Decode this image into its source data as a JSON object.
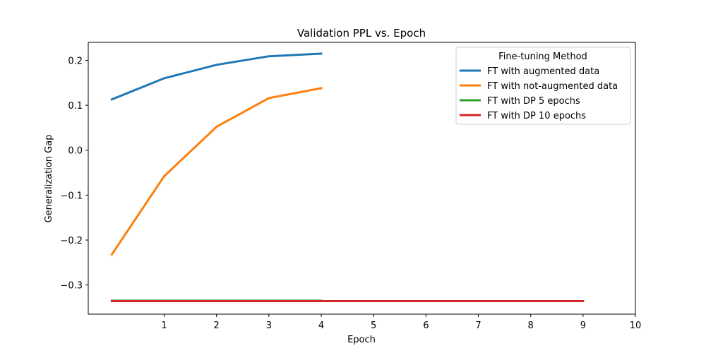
{
  "chart_data": {
    "type": "line",
    "title": "Validation PPL  vs. Epoch",
    "xlabel": "Epoch",
    "ylabel": "Generalization Gap",
    "xlim": [
      -0.45,
      10
    ],
    "ylim": [
      -0.365,
      0.24
    ],
    "xticks": [
      1,
      2,
      3,
      4,
      5,
      6,
      7,
      8,
      9,
      10
    ],
    "yticks": [
      0.2,
      0.1,
      0.0,
      -0.1,
      -0.2,
      -0.3
    ],
    "ytick_labels": [
      "0.2",
      "0.1",
      "0.0",
      "−0.1",
      "−0.2",
      "−0.3"
    ],
    "grid": false,
    "legend": {
      "title": "Fine-tuning Method",
      "placement": "top-right"
    },
    "series": [
      {
        "name": "FT with augmented data",
        "color": "#1f77b4",
        "x": [
          0,
          1,
          2,
          3,
          4
        ],
        "values": [
          0.113,
          0.16,
          0.19,
          0.209,
          0.215
        ]
      },
      {
        "name": "FT with not-augmented data",
        "color": "#ff7f0e",
        "x": [
          0,
          1,
          2,
          3,
          4
        ],
        "values": [
          -0.232,
          -0.058,
          0.052,
          0.116,
          0.138
        ]
      },
      {
        "name": "FT with DP 5 epochs",
        "color": "#2ca02c",
        "x": [
          0,
          1,
          2,
          3,
          4
        ],
        "values": [
          -0.335,
          -0.335,
          -0.335,
          -0.335,
          -0.335
        ]
      },
      {
        "name": "FT with DP 10 epochs",
        "color": "#d62728",
        "x": [
          0,
          1,
          2,
          3,
          4,
          5,
          6,
          7,
          8,
          9
        ],
        "values": [
          -0.336,
          -0.336,
          -0.336,
          -0.336,
          -0.336,
          -0.336,
          -0.336,
          -0.336,
          -0.336,
          -0.336
        ]
      }
    ]
  }
}
